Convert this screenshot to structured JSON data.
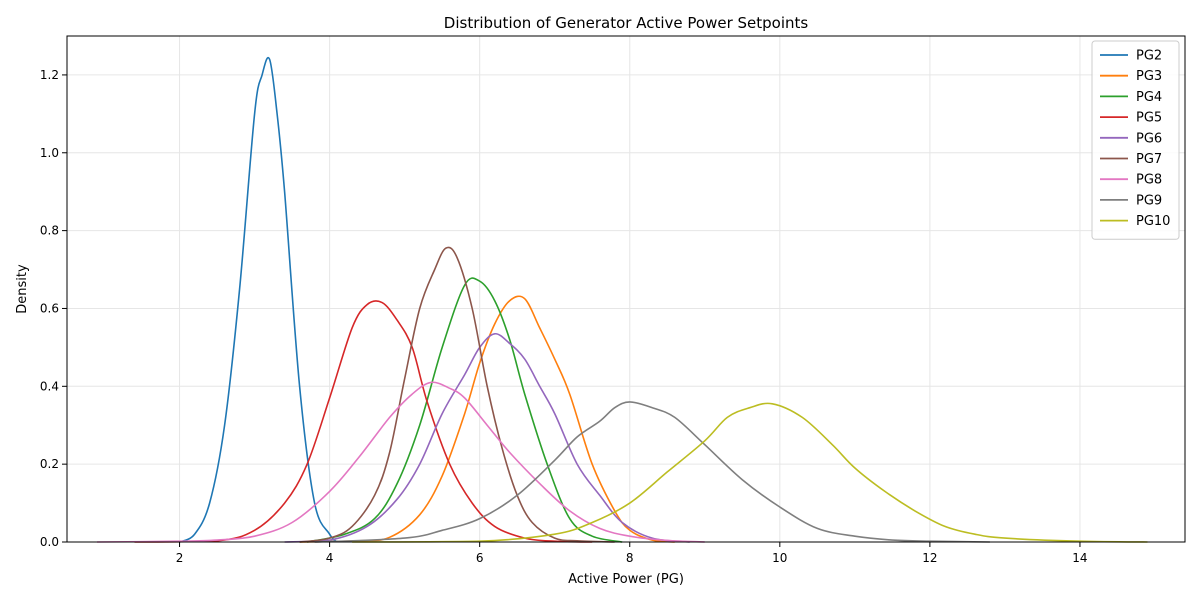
{
  "chart_data": {
    "type": "line",
    "title": "Distribution of Generator Active Power Setpoints",
    "xlabel": "Active Power (PG)",
    "ylabel": "Density",
    "xlim": [
      0.5,
      15.4
    ],
    "ylim": [
      0,
      1.3
    ],
    "xticks": [
      2,
      4,
      6,
      8,
      10,
      12,
      14
    ],
    "yticks": [
      0.0,
      0.2,
      0.4,
      0.6,
      0.8,
      1.0,
      1.2
    ],
    "xtick_labels": [
      "2",
      "4",
      "6",
      "8",
      "10",
      "12",
      "14"
    ],
    "ytick_labels": [
      "0.0",
      "0.2",
      "0.4",
      "0.6",
      "0.8",
      "1.0",
      "1.2"
    ],
    "grid": true,
    "legend_position": "top-right",
    "series": [
      {
        "name": "PG2",
        "color": "#1f77b4",
        "x": [
          2.0,
          2.2,
          2.4,
          2.6,
          2.8,
          3.0,
          3.1,
          3.2,
          3.3,
          3.4,
          3.6,
          3.8,
          4.0,
          4.1
        ],
        "values": [
          0.0,
          0.02,
          0.1,
          0.3,
          0.65,
          1.1,
          1.2,
          1.24,
          1.1,
          0.9,
          0.4,
          0.1,
          0.02,
          0.0
        ]
      },
      {
        "name": "PG3",
        "color": "#ff7f0e",
        "x": [
          3.6,
          4.4,
          4.8,
          5.2,
          5.5,
          5.8,
          6.0,
          6.2,
          6.4,
          6.6,
          6.8,
          7.0,
          7.2,
          7.5,
          7.8,
          8.0,
          8.3,
          8.6
        ],
        "values": [
          0.0,
          0.003,
          0.012,
          0.07,
          0.17,
          0.33,
          0.46,
          0.56,
          0.62,
          0.625,
          0.55,
          0.47,
          0.38,
          0.2,
          0.08,
          0.03,
          0.005,
          0.0
        ]
      },
      {
        "name": "PG4",
        "color": "#2ca02c",
        "x": [
          3.7,
          4.2,
          4.6,
          4.9,
          5.2,
          5.5,
          5.8,
          6.0,
          6.2,
          6.4,
          6.6,
          6.9,
          7.2,
          7.5,
          7.9
        ],
        "values": [
          0.0,
          0.02,
          0.06,
          0.15,
          0.3,
          0.5,
          0.66,
          0.67,
          0.62,
          0.52,
          0.38,
          0.2,
          0.06,
          0.015,
          0.0
        ]
      },
      {
        "name": "PG5",
        "color": "#d62728",
        "x": [
          1.4,
          2.5,
          3.0,
          3.4,
          3.7,
          4.0,
          4.3,
          4.5,
          4.7,
          4.9,
          5.1,
          5.3,
          5.6,
          5.9,
          6.2,
          6.6,
          7.0,
          7.5
        ],
        "values": [
          0.0,
          0.003,
          0.03,
          0.1,
          0.2,
          0.37,
          0.55,
          0.61,
          0.615,
          0.57,
          0.5,
          0.36,
          0.2,
          0.1,
          0.04,
          0.01,
          0.002,
          0.0
        ]
      },
      {
        "name": "PG6",
        "color": "#9467bd",
        "x": [
          3.4,
          4.0,
          4.5,
          4.9,
          5.2,
          5.5,
          5.8,
          6.0,
          6.2,
          6.4,
          6.6,
          6.8,
          7.0,
          7.3,
          7.6,
          7.9,
          8.3,
          8.8
        ],
        "values": [
          0.0,
          0.005,
          0.04,
          0.11,
          0.2,
          0.33,
          0.43,
          0.5,
          0.535,
          0.51,
          0.47,
          0.4,
          0.33,
          0.2,
          0.12,
          0.05,
          0.01,
          0.0
        ]
      },
      {
        "name": "PG7",
        "color": "#8c564b",
        "x": [
          3.6,
          4.0,
          4.3,
          4.6,
          4.8,
          5.0,
          5.2,
          5.4,
          5.55,
          5.7,
          5.9,
          6.1,
          6.3,
          6.5,
          6.7,
          7.0,
          7.3,
          7.8
        ],
        "values": [
          0.0,
          0.01,
          0.04,
          0.12,
          0.23,
          0.42,
          0.6,
          0.7,
          0.755,
          0.73,
          0.6,
          0.4,
          0.24,
          0.12,
          0.05,
          0.01,
          0.003,
          0.0
        ]
      },
      {
        "name": "PG8",
        "color": "#e377c2",
        "x": [
          0.9,
          2.0,
          2.5,
          3.0,
          3.5,
          4.0,
          4.4,
          4.8,
          5.1,
          5.35,
          5.6,
          5.8,
          6.1,
          6.4,
          6.8,
          7.2,
          7.6,
          8.0,
          8.5,
          9.0
        ],
        "values": [
          0.0,
          0.002,
          0.005,
          0.015,
          0.05,
          0.13,
          0.22,
          0.32,
          0.38,
          0.41,
          0.395,
          0.37,
          0.3,
          0.23,
          0.15,
          0.08,
          0.035,
          0.015,
          0.004,
          0.0
        ]
      },
      {
        "name": "PG9",
        "color": "#7f7f7f",
        "x": [
          3.8,
          5.0,
          5.5,
          6.0,
          6.5,
          7.0,
          7.3,
          7.6,
          7.8,
          8.0,
          8.3,
          8.6,
          9.0,
          9.5,
          10.0,
          10.5,
          11.0,
          11.5,
          12.0,
          12.8
        ],
        "values": [
          0.0,
          0.01,
          0.03,
          0.06,
          0.12,
          0.21,
          0.27,
          0.31,
          0.345,
          0.36,
          0.345,
          0.32,
          0.25,
          0.16,
          0.09,
          0.035,
          0.015,
          0.005,
          0.002,
          0.0
        ]
      },
      {
        "name": "PG10",
        "color": "#bcbd22",
        "x": [
          4.3,
          6.0,
          7.0,
          7.5,
          8.0,
          8.5,
          9.0,
          9.3,
          9.6,
          9.9,
          10.3,
          10.7,
          11.0,
          11.4,
          11.8,
          12.2,
          12.6,
          13.0,
          14.0,
          14.9
        ],
        "values": [
          0.0,
          0.002,
          0.02,
          0.05,
          0.1,
          0.18,
          0.26,
          0.32,
          0.345,
          0.355,
          0.32,
          0.25,
          0.19,
          0.13,
          0.08,
          0.04,
          0.02,
          0.01,
          0.002,
          0.0
        ]
      }
    ]
  }
}
